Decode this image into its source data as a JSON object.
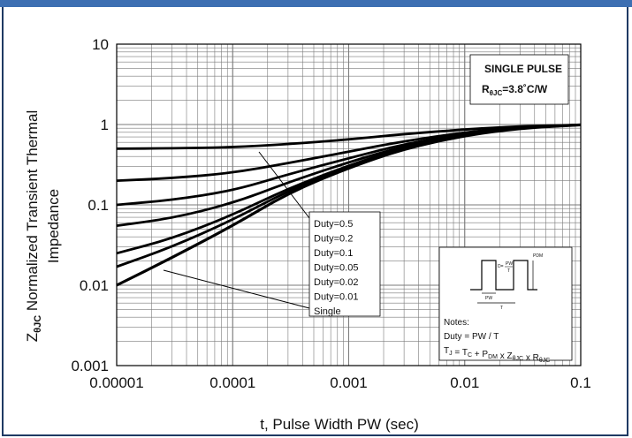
{
  "chart_data": {
    "type": "line",
    "xlabel": "t, Pulse Width PW (sec)",
    "ylabel": "ZθJC Normalized Transient Thermal Impedance",
    "ylabel_parts": {
      "symbol": "Z",
      "subscript": "θJC",
      "line1": "Normalized Transient Thermal",
      "line2": "Impedance"
    },
    "x_scale": "log",
    "y_scale": "log",
    "xlim": [
      1e-05,
      0.1
    ],
    "ylim": [
      0.001,
      10
    ],
    "x_ticks": [
      {
        "value": 1e-05,
        "label": "0.00001"
      },
      {
        "value": 0.0001,
        "label": "0.0001"
      },
      {
        "value": 0.001,
        "label": "0.001"
      },
      {
        "value": 0.01,
        "label": "0.01"
      },
      {
        "value": 0.1,
        "label": "0.1"
      }
    ],
    "y_ticks": [
      {
        "value": 10,
        "label": "10"
      },
      {
        "value": 1,
        "label": "1"
      },
      {
        "value": 0.1,
        "label": "0.1"
      },
      {
        "value": 0.01,
        "label": "0.01"
      },
      {
        "value": 0.001,
        "label": "0.001"
      }
    ],
    "grid": true,
    "series": [
      {
        "name": "Duty=0.5",
        "x": [
          1e-05,
          3e-05,
          0.0001,
          0.0003,
          0.001,
          0.003,
          0.01,
          0.03,
          0.1
        ],
        "y": [
          0.5,
          0.505,
          0.52,
          0.57,
          0.65,
          0.76,
          0.87,
          0.95,
          0.99
        ]
      },
      {
        "name": "Duty=0.2",
        "x": [
          1e-05,
          3e-05,
          0.0001,
          0.0003,
          0.001,
          0.003,
          0.01,
          0.03,
          0.1
        ],
        "y": [
          0.2,
          0.215,
          0.25,
          0.33,
          0.46,
          0.62,
          0.8,
          0.93,
          0.99
        ]
      },
      {
        "name": "Duty=0.1",
        "x": [
          1e-05,
          3e-05,
          0.0001,
          0.0003,
          0.001,
          0.003,
          0.01,
          0.03,
          0.1
        ],
        "y": [
          0.1,
          0.115,
          0.15,
          0.24,
          0.38,
          0.57,
          0.77,
          0.92,
          0.99
        ]
      },
      {
        "name": "Duty=0.05",
        "x": [
          1e-05,
          3e-05,
          0.0001,
          0.0003,
          0.001,
          0.003,
          0.01,
          0.03,
          0.1
        ],
        "y": [
          0.055,
          0.068,
          0.105,
          0.19,
          0.34,
          0.54,
          0.76,
          0.92,
          0.99
        ]
      },
      {
        "name": "Duty=0.02",
        "x": [
          1e-05,
          3e-05,
          0.0001,
          0.0003,
          0.001,
          0.003,
          0.01,
          0.03,
          0.1
        ],
        "y": [
          0.025,
          0.038,
          0.075,
          0.16,
          0.31,
          0.52,
          0.75,
          0.91,
          0.99
        ]
      },
      {
        "name": "Duty=0.01",
        "x": [
          1e-05,
          3e-05,
          0.0001,
          0.0003,
          0.001,
          0.003,
          0.01,
          0.03,
          0.1
        ],
        "y": [
          0.017,
          0.03,
          0.065,
          0.15,
          0.3,
          0.51,
          0.74,
          0.91,
          0.99
        ]
      },
      {
        "name": "Single",
        "x": [
          1e-05,
          3e-05,
          0.0001,
          0.0003,
          0.001,
          0.003,
          0.01,
          0.03,
          0.1
        ],
        "y": [
          0.01,
          0.022,
          0.055,
          0.14,
          0.29,
          0.5,
          0.73,
          0.9,
          0.99
        ]
      }
    ],
    "series_label_list": [
      "Duty=0.5",
      "Duty=0.2",
      "Duty=0.1",
      "Duty=0.05",
      "Duty=0.02",
      "Duty=0.01",
      "Single"
    ],
    "annotations": {
      "title_box": {
        "line1": "SINGLE PULSE",
        "line2_main": "R",
        "line2_sub": "θJC",
        "line2_tail": "=3.8˚C/W"
      },
      "notes_box": {
        "heading": "Notes:",
        "line1": "Duty = PW / T",
        "line2": "TJ = TC + PDM x ZθJC x RθJC",
        "line2_parts": [
          {
            "t": "T",
            "sub": "J"
          },
          {
            "t": " = T",
            "sub": "C"
          },
          {
            "t": " + P",
            "sub": "DM"
          },
          {
            "t": " x Z",
            "sub": "θJC"
          },
          {
            "t": " x R",
            "sub": "θJC"
          }
        ],
        "diagram_labels": {
          "pdm": "PDM",
          "duty": "D=",
          "pw": "PW",
          "pw_over_t_num": "PW",
          "pw_over_t_den": "T",
          "period": "T"
        }
      }
    },
    "colors": {
      "curves": "#000000",
      "grid": "#7a7a7a",
      "frame_top": "#3d6fb2",
      "frame_border": "#1f3a63"
    }
  }
}
